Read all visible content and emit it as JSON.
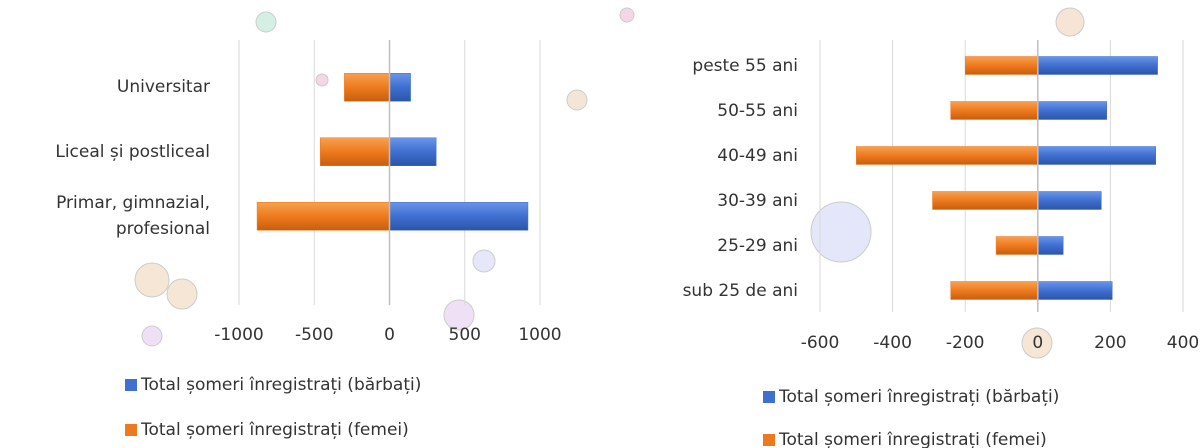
{
  "chart_data": [
    {
      "type": "bar",
      "orientation": "horizontal",
      "categories": [
        "Universitar",
        "Liceal și postliceal",
        "Primar, gimnazial, profesional"
      ],
      "series": [
        {
          "name": "Total șomeri înregistrați (bărbați)",
          "color": "#3f6fd0",
          "values": [
            140,
            310,
            920
          ]
        },
        {
          "name": "Total șomeri înregistrați (femei)",
          "color": "#ee7a1f",
          "values": [
            -300,
            -460,
            -880
          ]
        }
      ],
      "xlim": [
        -1000,
        1000
      ],
      "xticks": [
        -1000,
        -500,
        0,
        500,
        1000
      ],
      "grid": true
    },
    {
      "type": "bar",
      "orientation": "horizontal",
      "categories": [
        "peste 55 ani",
        "50-55 ani",
        "40-49 ani",
        "30-39 ani",
        "25-29 ani",
        "sub 25 de ani"
      ],
      "series": [
        {
          "name": "Total șomeri înregistrați (bărbați)",
          "color": "#3f6fd0",
          "values": [
            330,
            190,
            325,
            175,
            70,
            205
          ]
        },
        {
          "name": "Total șomeri înregistrați (femei)",
          "color": "#ee7a1f",
          "values": [
            -200,
            -240,
            -500,
            -290,
            -115,
            -240
          ]
        }
      ],
      "xlim": [
        -600,
        400
      ],
      "xticks": [
        -600,
        -400,
        -200,
        0,
        200,
        400
      ],
      "grid": true
    }
  ]
}
